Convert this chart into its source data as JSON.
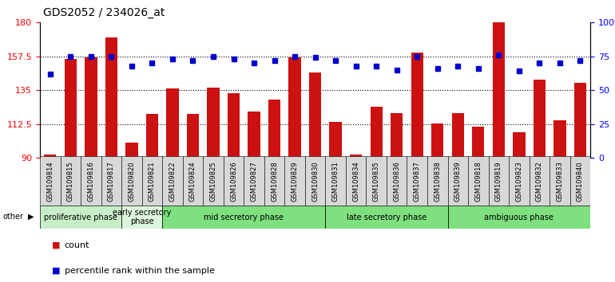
{
  "title": "GDS2052 / 234026_at",
  "samples": [
    "GSM109814",
    "GSM109815",
    "GSM109816",
    "GSM109817",
    "GSM109820",
    "GSM109821",
    "GSM109822",
    "GSM109824",
    "GSM109825",
    "GSM109826",
    "GSM109827",
    "GSM109828",
    "GSM109829",
    "GSM109830",
    "GSM109831",
    "GSM109834",
    "GSM109835",
    "GSM109836",
    "GSM109837",
    "GSM109838",
    "GSM109839",
    "GSM109818",
    "GSM109819",
    "GSM109823",
    "GSM109832",
    "GSM109833",
    "GSM109840"
  ],
  "counts": [
    92,
    156,
    157,
    170,
    100,
    119,
    136,
    119,
    137,
    133,
    121,
    129,
    157,
    147,
    114,
    92,
    124,
    120,
    160,
    113,
    120,
    111,
    180,
    107,
    142,
    115,
    140
  ],
  "percentiles": [
    62,
    75,
    75,
    75,
    68,
    70,
    73,
    72,
    75,
    73,
    70,
    72,
    75,
    74,
    72,
    68,
    68,
    65,
    75,
    66,
    68,
    66,
    76,
    64,
    70,
    70,
    72
  ],
  "phases": [
    {
      "label": "proliferative phase",
      "start": 0,
      "end": 4,
      "color": "#c8eec8"
    },
    {
      "label": "early secretory\nphase",
      "start": 4,
      "end": 6,
      "color": "#ddf0dd"
    },
    {
      "label": "mid secretory phase",
      "start": 6,
      "end": 14,
      "color": "#7ce07c"
    },
    {
      "label": "late secretory phase",
      "start": 14,
      "end": 20,
      "color": "#7ce07c"
    },
    {
      "label": "ambiguous phase",
      "start": 20,
      "end": 27,
      "color": "#7ce07c"
    }
  ],
  "ylim_left": [
    90,
    180
  ],
  "ylim_right": [
    0,
    100
  ],
  "yticks_left": [
    90,
    112.5,
    135,
    157.5,
    180
  ],
  "yticks_right": [
    0,
    25,
    50,
    75,
    100
  ],
  "bar_color": "#cc1111",
  "dot_color": "#0000cc",
  "background_color": "#ffffff"
}
